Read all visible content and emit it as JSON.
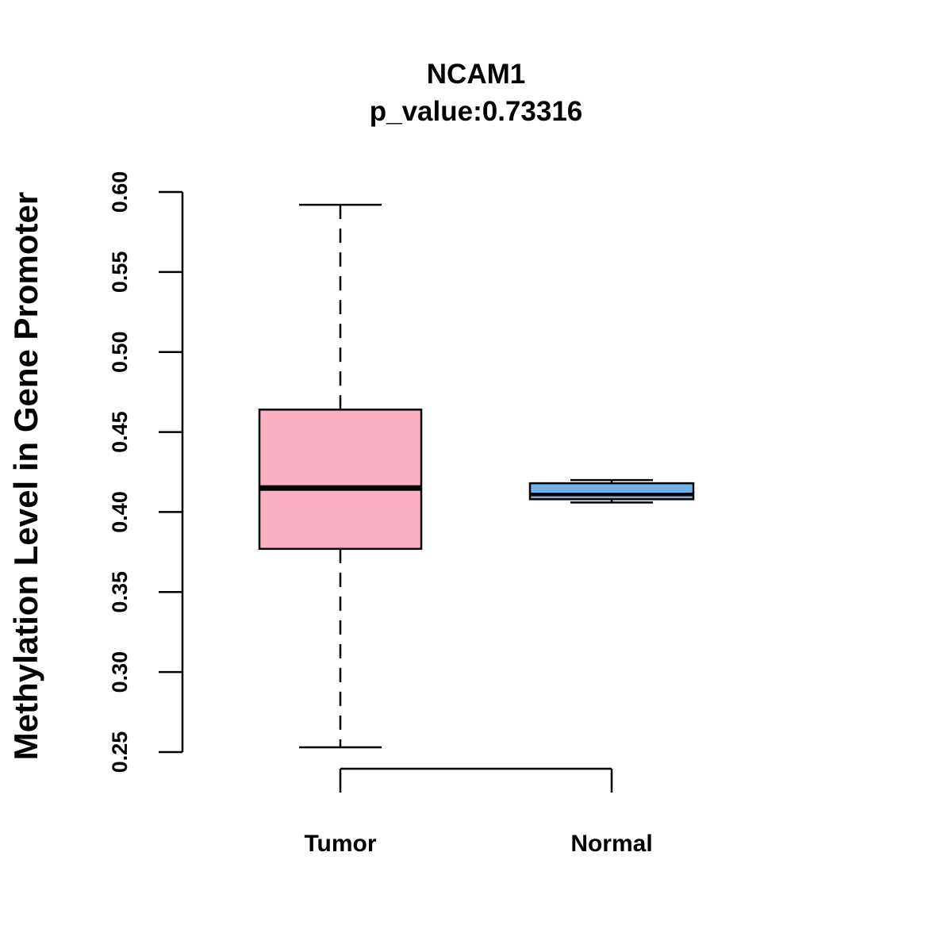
{
  "chart_data": {
    "type": "boxplot",
    "title": "NCAM1",
    "subtitle": "p_value:0.73316",
    "xlabel": "",
    "ylabel": "Methylation Level in Gene Promoter",
    "ylim": [
      0.25,
      0.6
    ],
    "yticks": [
      "0.25",
      "0.30",
      "0.35",
      "0.40",
      "0.45",
      "0.50",
      "0.55",
      "0.60"
    ],
    "grid": false,
    "legend": "none",
    "categories": [
      "Tumor",
      "Normal"
    ],
    "boxes": [
      {
        "category": "Tumor",
        "min": 0.253,
        "q1": 0.377,
        "median": 0.415,
        "q3": 0.464,
        "max": 0.592,
        "color": "#FBB1C4"
      },
      {
        "category": "Normal",
        "min": 0.406,
        "q1": 0.408,
        "median": 0.411,
        "q3": 0.418,
        "max": 0.42,
        "color": "#72B1E8"
      }
    ]
  }
}
